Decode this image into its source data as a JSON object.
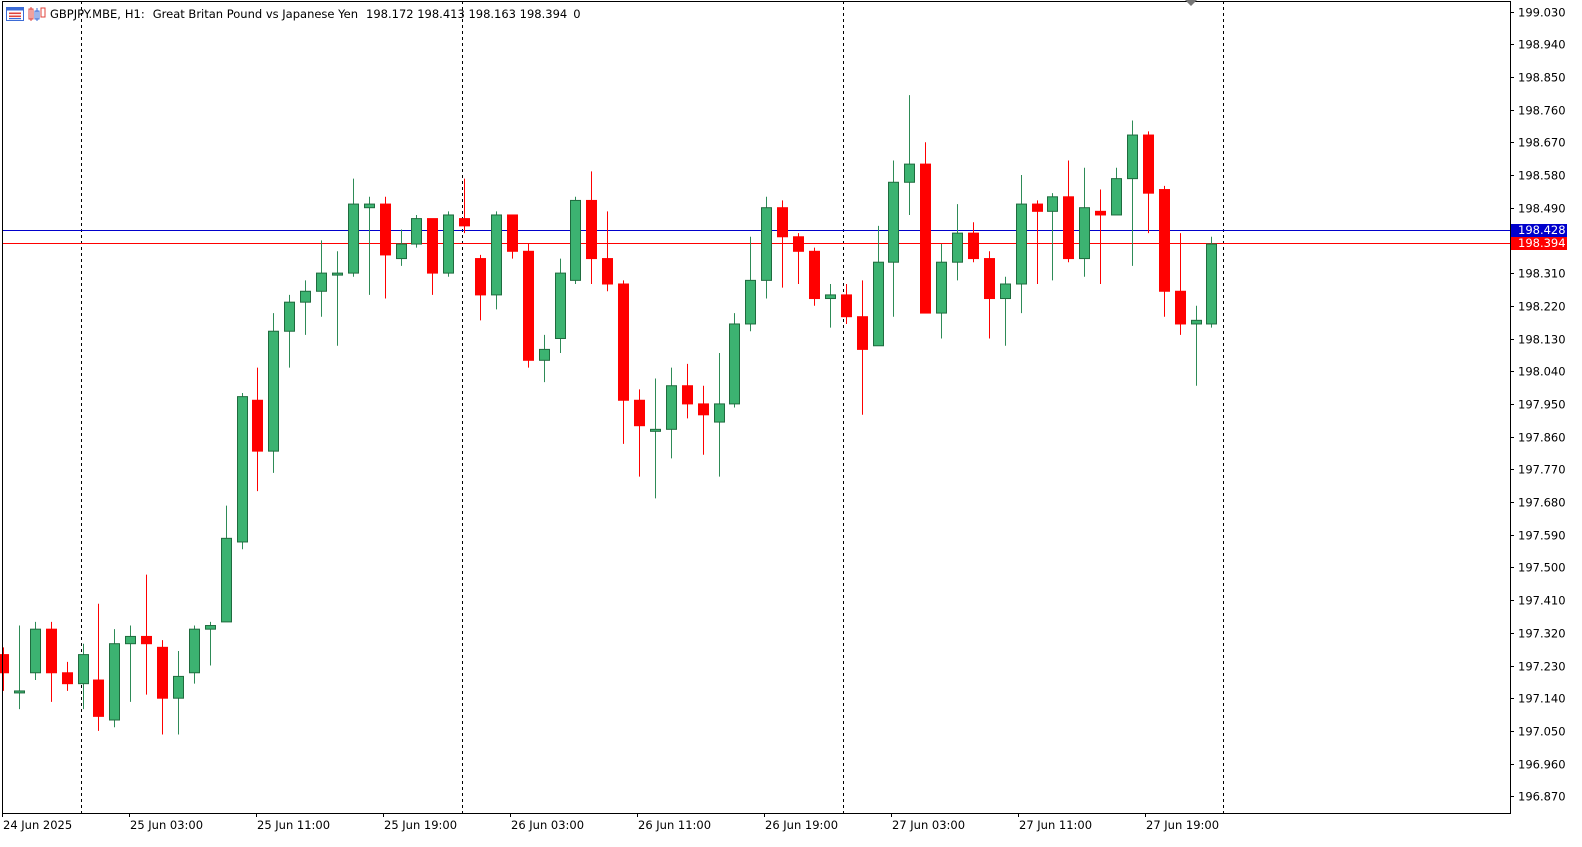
{
  "header": {
    "symbol": "GBPJPY.MBE",
    "timeframe": "H1:",
    "description": "Great Britan Pound vs Japanese Yen",
    "ohlc": "198.172 198.413 198.163 198.394",
    "volume": "0"
  },
  "colors": {
    "bull": "#3cb371",
    "bear": "#ff0000",
    "wick_bull": "#2e8b57",
    "wick_bear": "#ff0000",
    "ask_line": "#0000cc",
    "bid_line": "#ff0000",
    "grid": "#000000",
    "axis": "#000000"
  },
  "price_axis": {
    "ticks": [
      "199.030",
      "198.940",
      "198.850",
      "198.760",
      "198.670",
      "198.580",
      "198.490",
      "198.310",
      "198.220",
      "198.130",
      "198.040",
      "197.950",
      "197.860",
      "197.770",
      "197.680",
      "197.590",
      "197.500",
      "197.410",
      "197.320",
      "197.230",
      "197.140",
      "197.050",
      "196.960",
      "196.870"
    ],
    "ask_label": "198.428",
    "bid_label": "198.394"
  },
  "time_axis": {
    "labels": [
      "24 Jun 2025",
      "25 Jun 03:00",
      "25 Jun 11:00",
      "25 Jun 19:00",
      "26 Jun 03:00",
      "26 Jun 11:00",
      "26 Jun 19:00",
      "27 Jun 03:00",
      "27 Jun 11:00",
      "27 Jun 19:00"
    ]
  },
  "chart_data": {
    "type": "candlestick",
    "symbol": "GBPJPY.MBE",
    "timeframe": "H1",
    "ylim": [
      196.82,
      199.06
    ],
    "ask": 198.428,
    "bid": 198.394,
    "day_separators": [
      "25 Jun 00:00",
      "26 Jun 00:00",
      "27 Jun 00:00",
      "28 Jun 00:00"
    ],
    "candles": [
      [
        197.26,
        197.21,
        197.28,
        197.16
      ],
      [
        197.16,
        197.16,
        197.34,
        197.11
      ],
      [
        197.21,
        197.33,
        197.35,
        197.19
      ],
      [
        197.33,
        197.21,
        197.35,
        197.13
      ],
      [
        197.21,
        197.18,
        197.24,
        197.16
      ],
      [
        197.18,
        197.26,
        197.29,
        197.11
      ],
      [
        197.19,
        197.09,
        197.4,
        197.05
      ],
      [
        197.08,
        197.29,
        197.33,
        197.06
      ],
      [
        197.29,
        197.31,
        197.34,
        197.13
      ],
      [
        197.31,
        197.29,
        197.48,
        197.15
      ],
      [
        197.28,
        197.14,
        197.3,
        197.04
      ],
      [
        197.14,
        197.2,
        197.27,
        197.04
      ],
      [
        197.21,
        197.33,
        197.34,
        197.18
      ],
      [
        197.33,
        197.34,
        197.35,
        197.23
      ],
      [
        197.35,
        197.58,
        197.67,
        197.35
      ],
      [
        197.57,
        197.97,
        197.98,
        197.55
      ],
      [
        197.96,
        197.82,
        198.05,
        197.71
      ],
      [
        197.82,
        198.15,
        198.2,
        197.76
      ],
      [
        198.15,
        198.23,
        198.25,
        198.05
      ],
      [
        198.23,
        198.26,
        198.29,
        198.14
      ],
      [
        198.26,
        198.31,
        198.4,
        198.19
      ],
      [
        198.31,
        198.31,
        198.37,
        198.11
      ],
      [
        198.31,
        198.5,
        198.57,
        198.3
      ],
      [
        198.49,
        198.5,
        198.52,
        198.25
      ],
      [
        198.5,
        198.36,
        198.52,
        198.24
      ],
      [
        198.35,
        198.39,
        198.43,
        198.33
      ],
      [
        198.39,
        198.46,
        198.47,
        198.38
      ],
      [
        198.46,
        198.31,
        198.46,
        198.25
      ],
      [
        198.31,
        198.47,
        198.48,
        198.3
      ],
      [
        198.46,
        198.44,
        198.57,
        198.42
      ],
      [
        198.35,
        198.25,
        198.36,
        198.18
      ],
      [
        198.25,
        198.47,
        198.48,
        198.21
      ],
      [
        198.47,
        198.37,
        198.47,
        198.35
      ],
      [
        198.37,
        198.07,
        198.39,
        198.05
      ],
      [
        198.07,
        198.1,
        198.14,
        198.01
      ],
      [
        198.13,
        198.31,
        198.35,
        198.09
      ],
      [
        198.29,
        198.51,
        198.52,
        198.28
      ],
      [
        198.51,
        198.35,
        198.59,
        198.28
      ],
      [
        198.35,
        198.28,
        198.48,
        198.26
      ],
      [
        198.28,
        197.96,
        198.29,
        197.84
      ],
      [
        197.96,
        197.89,
        197.99,
        197.75
      ],
      [
        197.88,
        197.88,
        198.02,
        197.69
      ],
      [
        197.88,
        198.0,
        198.05,
        197.8
      ],
      [
        198.0,
        197.95,
        198.06,
        197.91
      ],
      [
        197.95,
        197.92,
        198.0,
        197.81
      ],
      [
        197.9,
        197.95,
        198.09,
        197.75
      ],
      [
        197.95,
        198.17,
        198.2,
        197.94
      ],
      [
        198.17,
        198.29,
        198.41,
        198.15
      ],
      [
        198.29,
        198.49,
        198.52,
        198.24
      ],
      [
        198.49,
        198.41,
        198.51,
        198.27
      ],
      [
        198.41,
        198.37,
        198.42,
        198.28
      ],
      [
        198.37,
        198.24,
        198.38,
        198.22
      ],
      [
        198.24,
        198.25,
        198.28,
        198.16
      ],
      [
        198.25,
        198.19,
        198.28,
        198.17
      ],
      [
        198.19,
        198.1,
        198.29,
        197.92
      ],
      [
        198.11,
        198.34,
        198.44,
        198.11
      ],
      [
        198.34,
        198.56,
        198.62,
        198.19
      ],
      [
        198.56,
        198.61,
        198.8,
        198.47
      ],
      [
        198.61,
        198.2,
        198.67,
        198.2
      ],
      [
        198.2,
        198.34,
        198.39,
        198.13
      ],
      [
        198.34,
        198.42,
        198.5,
        198.29
      ],
      [
        198.42,
        198.35,
        198.45,
        198.34
      ],
      [
        198.35,
        198.24,
        198.37,
        198.13
      ],
      [
        198.24,
        198.28,
        198.3,
        198.11
      ],
      [
        198.28,
        198.5,
        198.58,
        198.2
      ],
      [
        198.5,
        198.48,
        198.51,
        198.28
      ],
      [
        198.48,
        198.52,
        198.53,
        198.29
      ],
      [
        198.52,
        198.35,
        198.62,
        198.34
      ],
      [
        198.35,
        198.49,
        198.6,
        198.3
      ],
      [
        198.48,
        198.47,
        198.54,
        198.28
      ],
      [
        198.47,
        198.57,
        198.6,
        198.47
      ],
      [
        198.57,
        198.69,
        198.73,
        198.33
      ],
      [
        198.69,
        198.53,
        198.7,
        198.42
      ],
      [
        198.54,
        198.26,
        198.55,
        198.19
      ],
      [
        198.26,
        198.17,
        198.42,
        198.14
      ],
      [
        198.17,
        198.18,
        198.22,
        198.0
      ],
      [
        198.17,
        198.39,
        198.41,
        198.16
      ]
    ]
  }
}
